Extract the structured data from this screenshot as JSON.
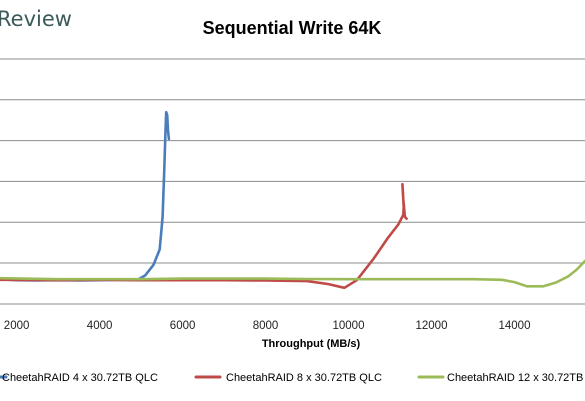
{
  "brand": "Review",
  "chart_data": {
    "type": "line",
    "title": "Sequential Write 64K",
    "xlabel": "Throughput (MB/s)",
    "ylabel": "",
    "xlim": [
      1600,
      15700
    ],
    "x_ticks": [
      2000,
      4000,
      6000,
      8000,
      10000,
      12000,
      14000
    ],
    "ylim": [
      0,
      1
    ],
    "y_grid_lines": 6,
    "grid": true,
    "legend_position": "bottom",
    "series": [
      {
        "name": "CheetahRAID 4 x 30.72TB QLC",
        "color": "#4a7ebb",
        "points": [
          [
            1600,
            0.025
          ],
          [
            2000,
            0.02
          ],
          [
            2500,
            0.018
          ],
          [
            3000,
            0.02
          ],
          [
            3500,
            0.018
          ],
          [
            4000,
            0.02
          ],
          [
            4500,
            0.022
          ],
          [
            4900,
            0.02
          ],
          [
            5100,
            0.045
          ],
          [
            5300,
            0.1
          ],
          [
            5450,
            0.18
          ],
          [
            5520,
            0.35
          ],
          [
            5560,
            0.6
          ],
          [
            5590,
            0.8
          ],
          [
            5605,
            0.895
          ],
          [
            5630,
            0.88
          ],
          [
            5650,
            0.8
          ],
          [
            5670,
            0.755
          ]
        ]
      },
      {
        "name": "CheetahRAID 8 x 30.72TB QLC",
        "color": "#be4b48",
        "points": [
          [
            1600,
            0.022
          ],
          [
            3000,
            0.02
          ],
          [
            4000,
            0.022
          ],
          [
            5000,
            0.02
          ],
          [
            6000,
            0.02
          ],
          [
            7000,
            0.02
          ],
          [
            8000,
            0.018
          ],
          [
            9000,
            0.015
          ],
          [
            9500,
            0.0
          ],
          [
            9900,
            -0.02
          ],
          [
            10200,
            0.02
          ],
          [
            10600,
            0.13
          ],
          [
            10950,
            0.24
          ],
          [
            11200,
            0.31
          ],
          [
            11320,
            0.36
          ],
          [
            11330,
            0.4
          ],
          [
            11310,
            0.48
          ],
          [
            11300,
            0.52
          ],
          [
            11320,
            0.44
          ],
          [
            11360,
            0.35
          ],
          [
            11400,
            0.34
          ]
        ]
      },
      {
        "name": "CheetahRAID 12 x 30.72TB QLC",
        "color": "#9bbb59",
        "points": [
          [
            1600,
            0.03
          ],
          [
            3000,
            0.025
          ],
          [
            4000,
            0.025
          ],
          [
            5000,
            0.025
          ],
          [
            6000,
            0.028
          ],
          [
            7000,
            0.028
          ],
          [
            8000,
            0.028
          ],
          [
            9000,
            0.026
          ],
          [
            10000,
            0.025
          ],
          [
            11000,
            0.025
          ],
          [
            12000,
            0.025
          ],
          [
            13000,
            0.025
          ],
          [
            13700,
            0.022
          ],
          [
            14000,
            0.01
          ],
          [
            14300,
            -0.012
          ],
          [
            14700,
            -0.012
          ],
          [
            15000,
            0.008
          ],
          [
            15300,
            0.04
          ],
          [
            15500,
            0.075
          ],
          [
            15700,
            0.12
          ]
        ]
      }
    ]
  }
}
